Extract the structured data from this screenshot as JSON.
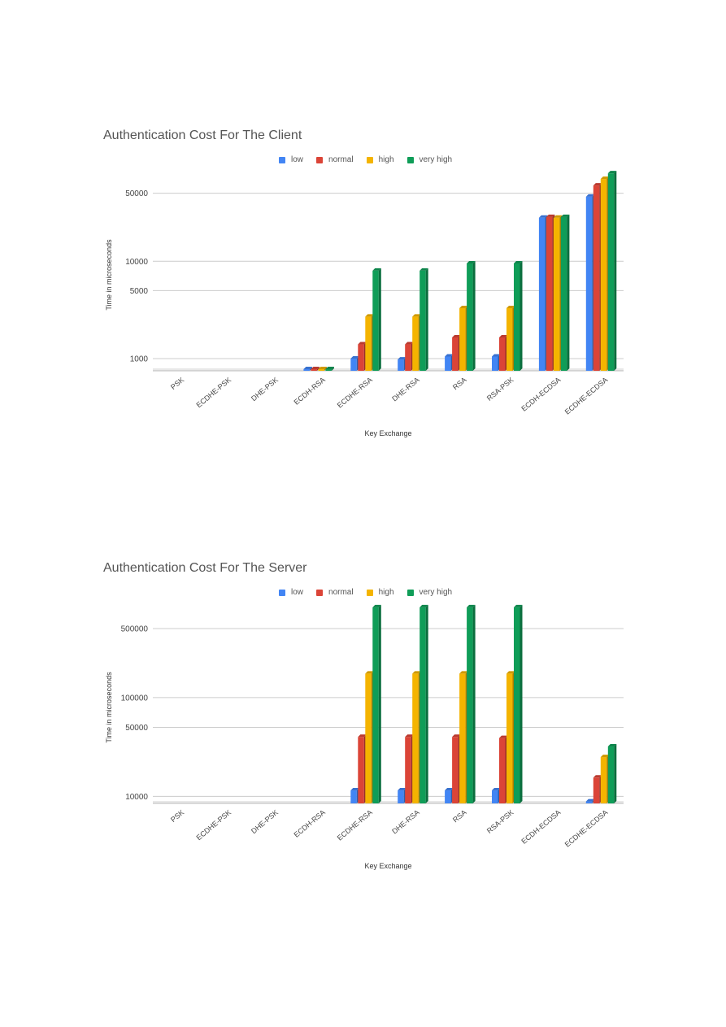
{
  "chart_data": [
    {
      "type": "bar",
      "title": "Authentication Cost For The Client",
      "xlabel": "Key Exchange",
      "ylabel": "Time in microseconds",
      "y_scale": "log",
      "ylim": [
        750,
        85000
      ],
      "yticks": [
        1000,
        5000,
        10000,
        50000
      ],
      "grid": true,
      "legend_position": "top",
      "categories": [
        "PSK",
        "ECDHE-PSK",
        "DHE-PSK",
        "ECDH-RSA",
        "ECDHE-RSA",
        "DHE-RSA",
        "RSA",
        "RSA-PSK",
        "ECDH-ECDSA",
        "ECDHE-ECDSA"
      ],
      "series": [
        {
          "name": "low",
          "color": "#4285F4",
          "values": [
            null,
            null,
            null,
            780,
            1000,
            980,
            1050,
            1050,
            28000,
            46000
          ]
        },
        {
          "name": "normal",
          "color": "#DB4437",
          "values": [
            null,
            null,
            null,
            780,
            1400,
            1400,
            1650,
            1650,
            28500,
            60000
          ]
        },
        {
          "name": "high",
          "color": "#F4B400",
          "values": [
            null,
            null,
            null,
            780,
            2700,
            2700,
            3300,
            3300,
            28000,
            70000
          ]
        },
        {
          "name": "very high",
          "color": "#0F9D58",
          "values": [
            null,
            null,
            null,
            780,
            8000,
            8000,
            9500,
            9500,
            28500,
            80000
          ]
        }
      ]
    },
    {
      "type": "bar",
      "title": "Authentication Cost For The Server",
      "xlabel": "Key Exchange",
      "ylabel": "Time in microseconds",
      "y_scale": "log",
      "ylim": [
        8500,
        900000
      ],
      "yticks": [
        10000,
        50000,
        100000,
        500000
      ],
      "grid": true,
      "legend_position": "top",
      "categories": [
        "PSK",
        "ECDHE-PSK",
        "DHE-PSK",
        "ECDH-RSA",
        "ECDHE-RSA",
        "DHE-RSA",
        "RSA",
        "RSA-PSK",
        "ECDH-ECDSA",
        "ECDHE-ECDSA"
      ],
      "series": [
        {
          "name": "low",
          "color": "#4285F4",
          "values": [
            null,
            null,
            null,
            null,
            11500,
            11500,
            11500,
            11500,
            null,
            8900
          ]
        },
        {
          "name": "normal",
          "color": "#DB4437",
          "values": [
            null,
            null,
            null,
            null,
            40000,
            40000,
            40000,
            39000,
            null,
            15500
          ]
        },
        {
          "name": "high",
          "color": "#F4B400",
          "values": [
            null,
            null,
            null,
            null,
            175000,
            175000,
            175000,
            175000,
            null,
            25000
          ]
        },
        {
          "name": "very high",
          "color": "#0F9D58",
          "values": [
            null,
            null,
            null,
            null,
            820000,
            820000,
            820000,
            820000,
            null,
            32000
          ]
        }
      ]
    }
  ]
}
